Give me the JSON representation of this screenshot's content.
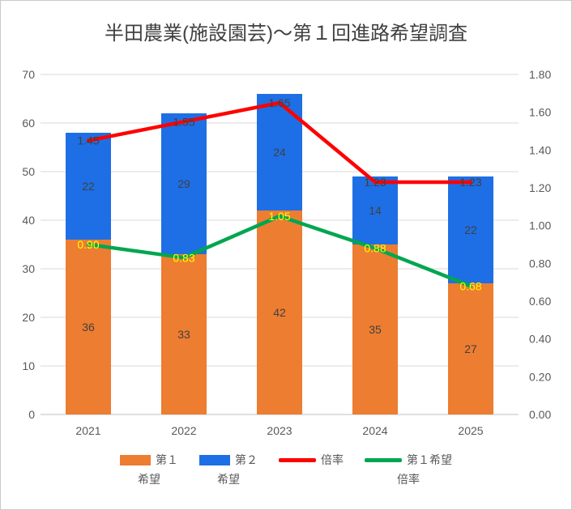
{
  "frame": {
    "background": "#FFFFFF",
    "border_color": "#C9C9C9"
  },
  "chart_data": {
    "type": "combo-stacked-bar-line",
    "title": "半田農業(施設園芸)～第１回進路希望調査",
    "categories": [
      "2021",
      "2022",
      "2023",
      "2024",
      "2025"
    ],
    "bar_series": [
      {
        "name": "第１希望",
        "legend_lines": [
          "第１",
          "希望"
        ],
        "color": "#ED7D31",
        "values": [
          36,
          33,
          42,
          35,
          27
        ],
        "label_color": "#404040"
      },
      {
        "name": "第２希望",
        "legend_lines": [
          "第２",
          "希望"
        ],
        "color": "#1E6FE5",
        "values": [
          22,
          29,
          24,
          14,
          22
        ],
        "label_color": "#404040"
      }
    ],
    "line_series": [
      {
        "name": "倍率",
        "legend_lines": [
          "倍率"
        ],
        "color": "#FF0000",
        "values": [
          1.45,
          1.55,
          1.65,
          1.23,
          1.23
        ],
        "label_color": "#404040"
      },
      {
        "name": "第１希望倍率",
        "legend_lines": [
          "第１希望",
          "倍率"
        ],
        "color": "#00A650",
        "values": [
          0.9,
          0.83,
          1.05,
          0.88,
          0.68
        ],
        "label_color": "#FFFF00"
      }
    ],
    "left_axis": {
      "min": 0,
      "max": 70,
      "step": 10,
      "tick_labels": [
        "0",
        "10",
        "20",
        "30",
        "40",
        "50",
        "60",
        "70"
      ]
    },
    "right_axis": {
      "min": 0,
      "max": 1.8,
      "step": 0.2,
      "tick_labels": [
        "0.00",
        "0.20",
        "0.40",
        "0.60",
        "0.80",
        "1.00",
        "1.20",
        "1.40",
        "1.60",
        "1.80"
      ]
    },
    "grid": true,
    "legend_position": "bottom",
    "value_label_decimals": 2,
    "colors": {
      "gridline": "#D9D9D9",
      "axis_line": "#BFBFBF",
      "tick_label": "#595959",
      "title": "#404040"
    }
  }
}
